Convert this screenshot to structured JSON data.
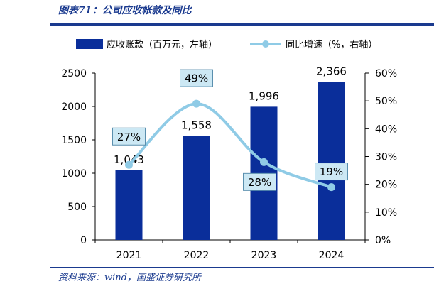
{
  "header": {
    "title": "图表71：公司应收帐款及同比"
  },
  "footer": {
    "source": "资料来源：wind，国盛证券研究所"
  },
  "colors": {
    "bar": "#0a2e9a",
    "line": "#8fcbe6",
    "rule": "#1a3a8f",
    "label_box": "#cce8f4"
  },
  "chart_data": {
    "type": "bar",
    "categories": [
      "2021",
      "2022",
      "2023",
      "2024"
    ],
    "series": [
      {
        "name": "应收账款（百万元，左轴）",
        "type": "bar",
        "axis": "left",
        "values": [
          1043,
          1558,
          1996,
          2366
        ],
        "labels": [
          "1,043",
          "1,558",
          "1,996",
          "2,366"
        ]
      },
      {
        "name": "同比增速（%，右轴）",
        "type": "line",
        "axis": "right",
        "values": [
          27,
          49,
          28,
          19
        ],
        "labels": [
          "27%",
          "49%",
          "28%",
          "19%"
        ]
      }
    ],
    "y_left": {
      "lim": [
        0,
        2500
      ],
      "ticks": [
        0,
        500,
        1000,
        1500,
        2000,
        2500
      ],
      "tick_labels": [
        "0",
        "500",
        "1000",
        "1500",
        "2000",
        "2500"
      ]
    },
    "y_right": {
      "lim": [
        0,
        60
      ],
      "ticks": [
        0,
        10,
        20,
        30,
        40,
        50,
        60
      ],
      "tick_labels": [
        "0%",
        "10%",
        "20%",
        "30%",
        "40%",
        "50%",
        "60%"
      ]
    },
    "legend": "top",
    "grid": false
  }
}
